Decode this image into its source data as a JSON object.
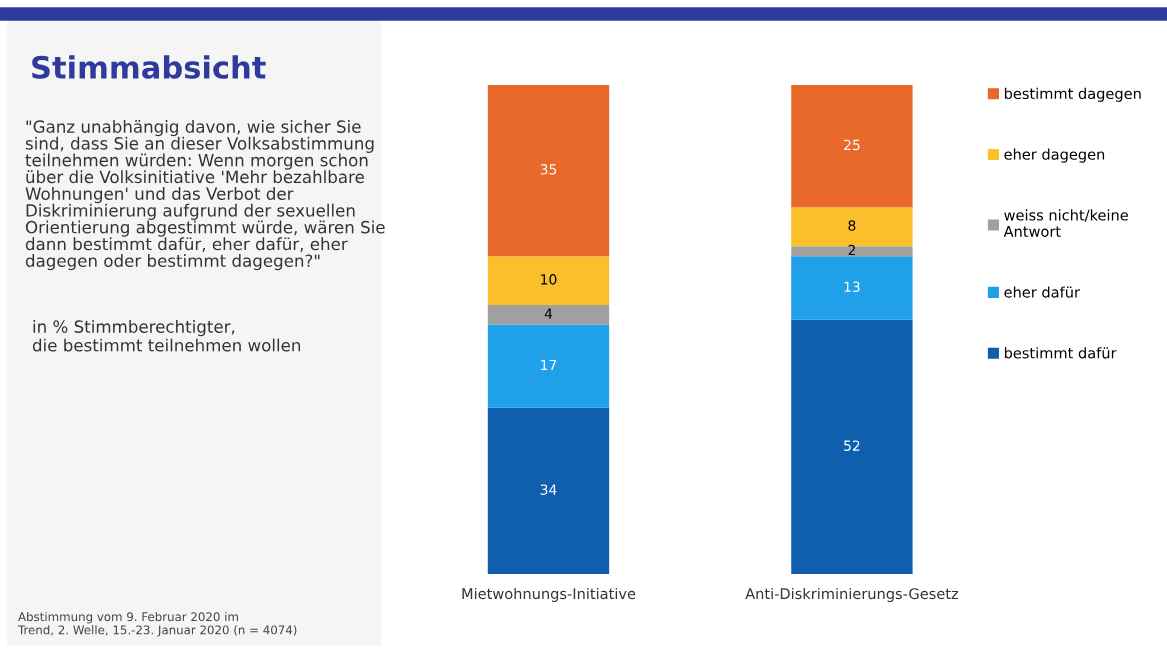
{
  "chart_data": {
    "type": "bar",
    "title": "Stimmabsicht",
    "subtitle": "\"Ganz unabhängig davon, wie sicher Sie\nsind, dass Sie an dieser Volksabstimmung\nteilnehmen würden: Wenn morgen schon\nüber die Volksinitiative 'Mehr bezahlbare\nWohnungen' und das Verbot der\nDiskriminierung aufgrund der sexuellen\nOrientierung abgestimmt würde, wären Sie\ndann bestimmt dafür, eher dafür, eher\ndagegen oder bestimmt dagegen?\"",
    "annotations": [
      "in % Stimmberechtigter,\ndie bestimmt teilnehmen wollen",
      "Abstimmung vom 9. Februar 2020 im\nTrend, 2. Welle, 15.-23. Januar 2020 (n = 4074)"
    ],
    "categories": [
      "Mietwohnungs-Initiative",
      "Anti-Diskriminierungs-Gesetz"
    ],
    "stacked": true,
    "data_labels": true,
    "ylim": [
      0,
      100
    ],
    "tick_labels": "x",
    "grid": false,
    "legend": "right",
    "series": [
      {
        "name": "bestimmt dafür",
        "color": "#0f5fae",
        "values": [
          34,
          52
        ]
      },
      {
        "name": "eher dafür",
        "color": "#1fa0e8",
        "values": [
          17,
          13
        ]
      },
      {
        "name": "weiss nicht/keine\nAntwort",
        "color": "#a0a0a0",
        "values": [
          4,
          2
        ]
      },
      {
        "name": "eher dagegen",
        "color": "#fbbf2c",
        "values": [
          10,
          8
        ]
      },
      {
        "name": "bestimmt dagegen",
        "color": "#e8692a",
        "values": [
          35,
          25
        ]
      }
    ]
  }
}
